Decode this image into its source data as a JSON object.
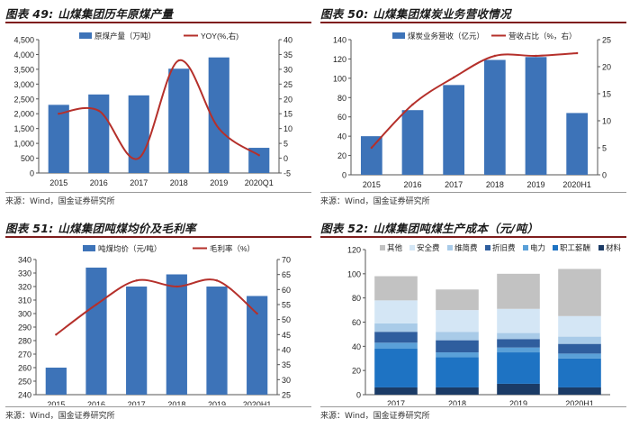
{
  "colors": {
    "bar": "#3d73b8",
    "line": "#b5302b",
    "rule": "#7f1d1d"
  },
  "panels": [
    {
      "title": "图表 49:  山煤集团历年原煤产量",
      "source": "来源：Wind，国金证券研究所",
      "chart_data": {
        "type": "bar+line",
        "categories": [
          "2015",
          "2016",
          "2017",
          "2018",
          "2019",
          "2020Q1"
        ],
        "series": [
          {
            "name": "原煤产量（万吨）",
            "type": "bar",
            "axis": "left",
            "values": [
              2300,
              2650,
              2620,
              3520,
              3900,
              850
            ]
          },
          {
            "name": "YOY(%,右)",
            "type": "line",
            "axis": "right",
            "values": [
              15,
              16,
              0,
              33,
              10,
              1
            ]
          }
        ],
        "left_ylim": [
          0,
          4500
        ],
        "left_ticks": [
          "0",
          "500",
          "1,000",
          "1,500",
          "2,000",
          "2,500",
          "3,000",
          "3,500",
          "4,000",
          "4,500"
        ],
        "right_ylim": [
          -5,
          40
        ],
        "right_ticks": [
          "-5",
          "0",
          "5",
          "10",
          "15",
          "20",
          "25",
          "30",
          "35",
          "40"
        ]
      }
    },
    {
      "title": "图表 50:  山煤集团煤炭业务营收情况",
      "source": "来源：Wind，国金证券研究所",
      "chart_data": {
        "type": "bar+line",
        "categories": [
          "2015",
          "2016",
          "2017",
          "2018",
          "2019",
          "2020H1"
        ],
        "series": [
          {
            "name": "煤炭业务营收（亿元）",
            "type": "bar",
            "axis": "left",
            "values": [
              40,
              67,
              93,
              119,
              122,
              64
            ]
          },
          {
            "name": "营收占比（%，右）",
            "type": "line",
            "axis": "right",
            "values": [
              5,
              13,
              18,
              22,
              22,
              22.5
            ]
          }
        ],
        "left_ylim": [
          0,
          140
        ],
        "left_ticks": [
          "0",
          "20",
          "40",
          "60",
          "80",
          "100",
          "120",
          "140"
        ],
        "right_ylim": [
          0,
          25
        ],
        "right_ticks": [
          "0",
          "5",
          "10",
          "15",
          "20",
          "25"
        ]
      }
    },
    {
      "title": "图表 51:  山煤集团吨煤均价及毛利率",
      "source": "来源：Wind，国金证券研究所",
      "chart_data": {
        "type": "bar+line",
        "categories": [
          "2015",
          "2016",
          "2017",
          "2018",
          "2019",
          "2020H1"
        ],
        "series": [
          {
            "name": "吨煤均价（元/吨）",
            "type": "bar",
            "axis": "left",
            "values": [
              260,
              334,
              320,
              329,
              320,
              313
            ]
          },
          {
            "name": "毛利率（%）",
            "type": "line",
            "axis": "right",
            "values": [
              45,
              55,
              63,
              61,
              63,
              52
            ]
          }
        ],
        "left_ylim": [
          240,
          340
        ],
        "left_ticks": [
          "240",
          "250",
          "260",
          "270",
          "280",
          "290",
          "300",
          "310",
          "320",
          "330",
          "340"
        ],
        "right_ylim": [
          25,
          70
        ],
        "right_ticks": [
          "25",
          "30",
          "35",
          "40",
          "45",
          "50",
          "55",
          "60",
          "65",
          "70"
        ]
      }
    },
    {
      "title": "图表 52:  山煤集团吨煤生产成本（元/吨）",
      "source": "来源：Wind，国金证券研究所",
      "chart_data": {
        "type": "stacked-bar",
        "categories": [
          "2017",
          "2018",
          "2019",
          "2020H1"
        ],
        "series": [
          {
            "name": "材料",
            "color": "#1b3b66",
            "values": [
              6,
              6,
              9,
              6
            ]
          },
          {
            "name": "职工薪酬",
            "color": "#1e73c3",
            "values": [
              32,
              25,
              26,
              24
            ]
          },
          {
            "name": "电力",
            "color": "#5aa0d8",
            "values": [
              5,
              4,
              4,
              4
            ]
          },
          {
            "name": "折旧费",
            "color": "#2f5e9e",
            "values": [
              9,
              10,
              7,
              8
            ]
          },
          {
            "name": "维简费",
            "color": "#a9cbe8",
            "values": [
              7,
              7,
              5,
              6
            ]
          },
          {
            "name": "安全费",
            "color": "#d4e6f5",
            "values": [
              19,
              18,
              20,
              17
            ]
          },
          {
            "name": "其他",
            "color": "#c2c2c2",
            "values": [
              20,
              17,
              29,
              39
            ]
          }
        ],
        "legend_order": [
          "其他",
          "安全费",
          "维简费",
          "折旧费",
          "电力",
          "职工薪酬",
          "材料"
        ],
        "ylim": [
          0,
          120
        ],
        "ticks": [
          "0",
          "20",
          "40",
          "60",
          "80",
          "100",
          "120"
        ]
      }
    }
  ]
}
